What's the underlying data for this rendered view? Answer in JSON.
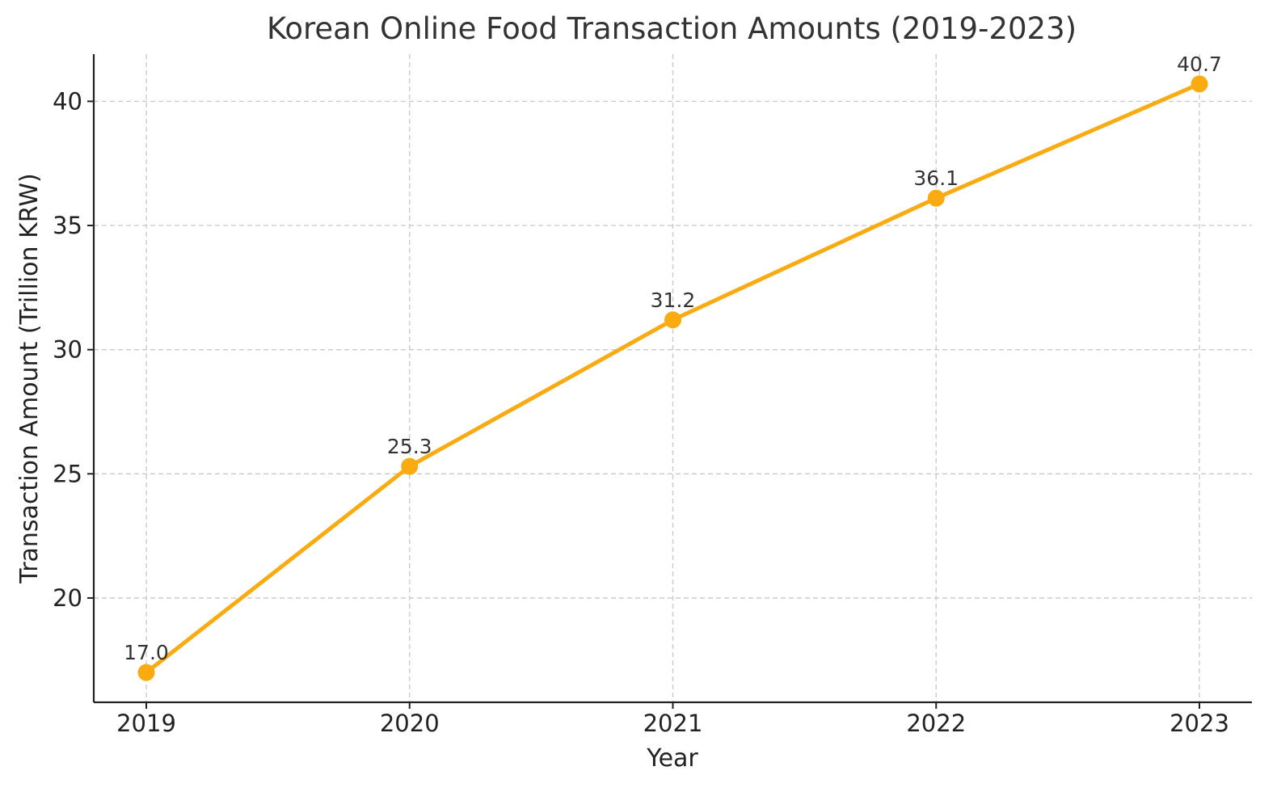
{
  "chart_data": {
    "type": "line",
    "title": "Korean Online Food Transaction Amounts (2019-2023)",
    "xlabel": "Year",
    "ylabel": "Transaction Amount (Trillion KRW)",
    "categories": [
      "2019",
      "2020",
      "2021",
      "2022",
      "2023"
    ],
    "series": [
      {
        "values": [
          17.0,
          25.3,
          31.2,
          36.1,
          40.7
        ]
      }
    ],
    "data_labels": [
      "17.0",
      "25.3",
      "31.2",
      "36.1",
      "40.7"
    ],
    "y_ticks": [
      20,
      25,
      30,
      35,
      40
    ],
    "ylim": [
      15.8,
      41.9
    ],
    "grid": true,
    "colors": {
      "line": "#F9AB11",
      "grid": "#c8c8c8",
      "axis": "#222222"
    }
  }
}
